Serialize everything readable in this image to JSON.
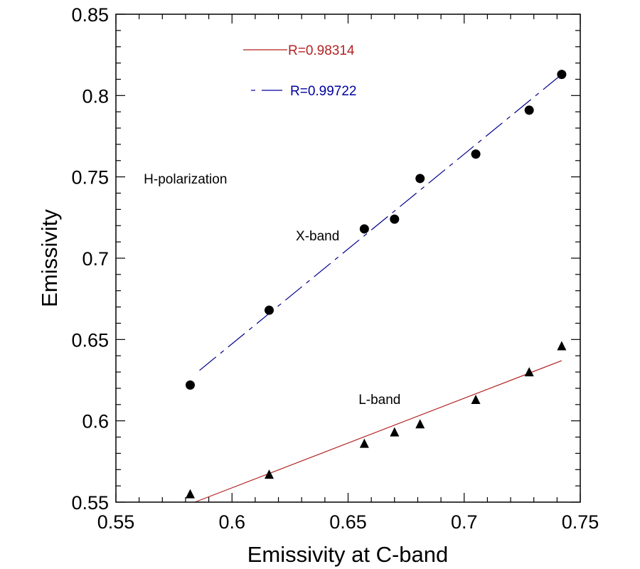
{
  "chart_data": {
    "type": "scatter",
    "title": "",
    "xlabel": "Emissivity at C-band",
    "ylabel": "Emissivity",
    "xlim": [
      0.55,
      0.75
    ],
    "ylim": [
      0.55,
      0.85
    ],
    "x_major_ticks": [
      0.55,
      0.6,
      0.65,
      0.7,
      0.75
    ],
    "y_major_ticks": [
      0.55,
      0.6,
      0.65,
      0.7,
      0.75,
      0.8,
      0.85
    ],
    "x_tick_labels": [
      "0.55",
      "0.6",
      "0.65",
      "0.7",
      "0.75"
    ],
    "y_tick_labels": [
      "0.55",
      "0.6",
      "0.65",
      "0.7",
      "0.75",
      "0.8",
      "0.85"
    ],
    "minor_tick_step_x": 0.01,
    "minor_tick_step_y": 0.01,
    "grid": false,
    "series": [
      {
        "name": "X-band",
        "marker": "circle",
        "color": "#000000",
        "x": [
          0.582,
          0.616,
          0.657,
          0.67,
          0.681,
          0.705,
          0.728,
          0.742
        ],
        "y": [
          0.622,
          0.668,
          0.718,
          0.724,
          0.749,
          0.764,
          0.791,
          0.813
        ],
        "fit": {
          "style": "dashed",
          "color": "#00008b",
          "x": [
            0.586,
            0.742
          ],
          "y": [
            0.631,
            0.813
          ],
          "R": "R=0.99722"
        }
      },
      {
        "name": "L-band",
        "marker": "triangle",
        "color": "#000000",
        "x": [
          0.582,
          0.616,
          0.657,
          0.67,
          0.681,
          0.705,
          0.728,
          0.742
        ],
        "y": [
          0.555,
          0.567,
          0.586,
          0.593,
          0.598,
          0.613,
          0.63,
          0.646
        ],
        "fit": {
          "style": "solid",
          "color": "#b22222",
          "x": [
            0.584,
            0.742
          ],
          "y": [
            0.55,
            0.637
          ],
          "R": "R=0.98314"
        }
      }
    ],
    "legend": {
      "placement": "top-center",
      "entries": [
        {
          "label": "R=0.98314",
          "color": "#b22222",
          "style": "solid"
        },
        {
          "label": "R=0.99722",
          "color": "#0000a0",
          "style": "dashed"
        }
      ]
    },
    "annotations": [
      {
        "text": "H-polarization",
        "x": 0.562,
        "y": 0.749
      },
      {
        "text": "X-band",
        "x": 0.6275,
        "y": 0.714
      },
      {
        "text": "L-band",
        "x": 0.6545,
        "y": 0.6135
      }
    ]
  }
}
